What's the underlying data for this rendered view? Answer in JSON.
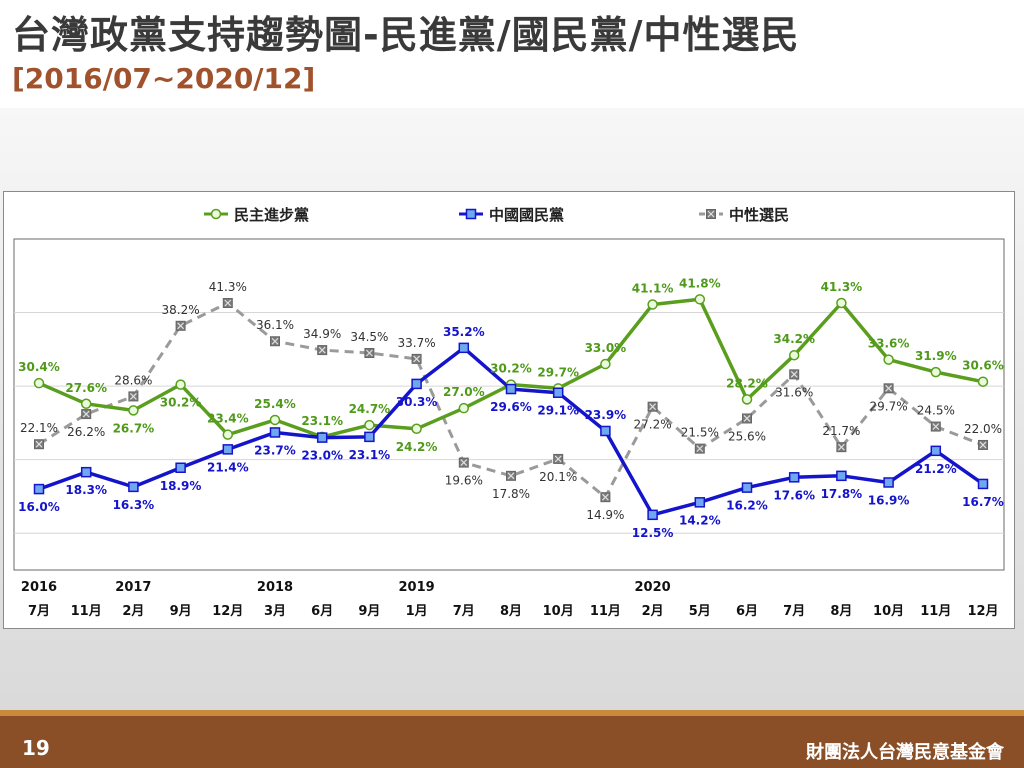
{
  "header": {
    "title": "台灣政黨支持趨勢圖-民進黨/國民黨/中性選民",
    "subtitle": "[2016/07~2020/12]"
  },
  "footer": {
    "page_number": "19",
    "organization": "財團法人台灣民意基金會"
  },
  "chart_data": {
    "type": "line",
    "x": [
      "7月",
      "11月",
      "2月",
      "9月",
      "12月",
      "3月",
      "6月",
      "9月",
      "1月",
      "7月",
      "8月",
      "10月",
      "11月",
      "2月",
      "5月",
      "6月",
      "7月",
      "8月",
      "10月",
      "11月",
      "12月"
    ],
    "year_labels": [
      {
        "index": 0,
        "label": "2016"
      },
      {
        "index": 2,
        "label": "2017"
      },
      {
        "index": 5,
        "label": "2018"
      },
      {
        "index": 8,
        "label": "2019"
      },
      {
        "index": 13,
        "label": "2020"
      }
    ],
    "ylim": [
      5,
      50
    ],
    "grid": true,
    "legend_position": "top",
    "series": [
      {
        "name": "民主進步黨",
        "color": "#5a9e1e",
        "label_color": "#4f9a1a",
        "dashed": false,
        "marker": "circle",
        "values": [
          30.4,
          27.6,
          26.7,
          30.2,
          23.4,
          25.4,
          23.1,
          24.7,
          24.2,
          27.0,
          30.2,
          29.7,
          33.0,
          41.1,
          41.8,
          28.2,
          34.2,
          41.3,
          33.6,
          31.9,
          30.6
        ]
      },
      {
        "name": "中國國民黨",
        "color": "#1414cc",
        "label_color": "#1414cc",
        "dashed": false,
        "marker": "square",
        "values": [
          16.0,
          18.3,
          16.3,
          18.9,
          21.4,
          23.7,
          23.0,
          23.1,
          30.3,
          35.2,
          29.6,
          29.1,
          23.9,
          12.5,
          14.2,
          16.2,
          17.6,
          17.8,
          16.9,
          21.2,
          16.7
        ]
      },
      {
        "name": "中性選民",
        "color": "#9a9a9a",
        "label_color": "#333333",
        "dashed": true,
        "marker": "x-square",
        "values": [
          22.1,
          26.2,
          28.6,
          38.2,
          41.3,
          36.1,
          34.9,
          34.5,
          33.7,
          19.6,
          17.8,
          20.1,
          14.9,
          27.2,
          21.5,
          25.6,
          31.6,
          21.7,
          29.7,
          24.5,
          22.0
        ]
      }
    ]
  }
}
